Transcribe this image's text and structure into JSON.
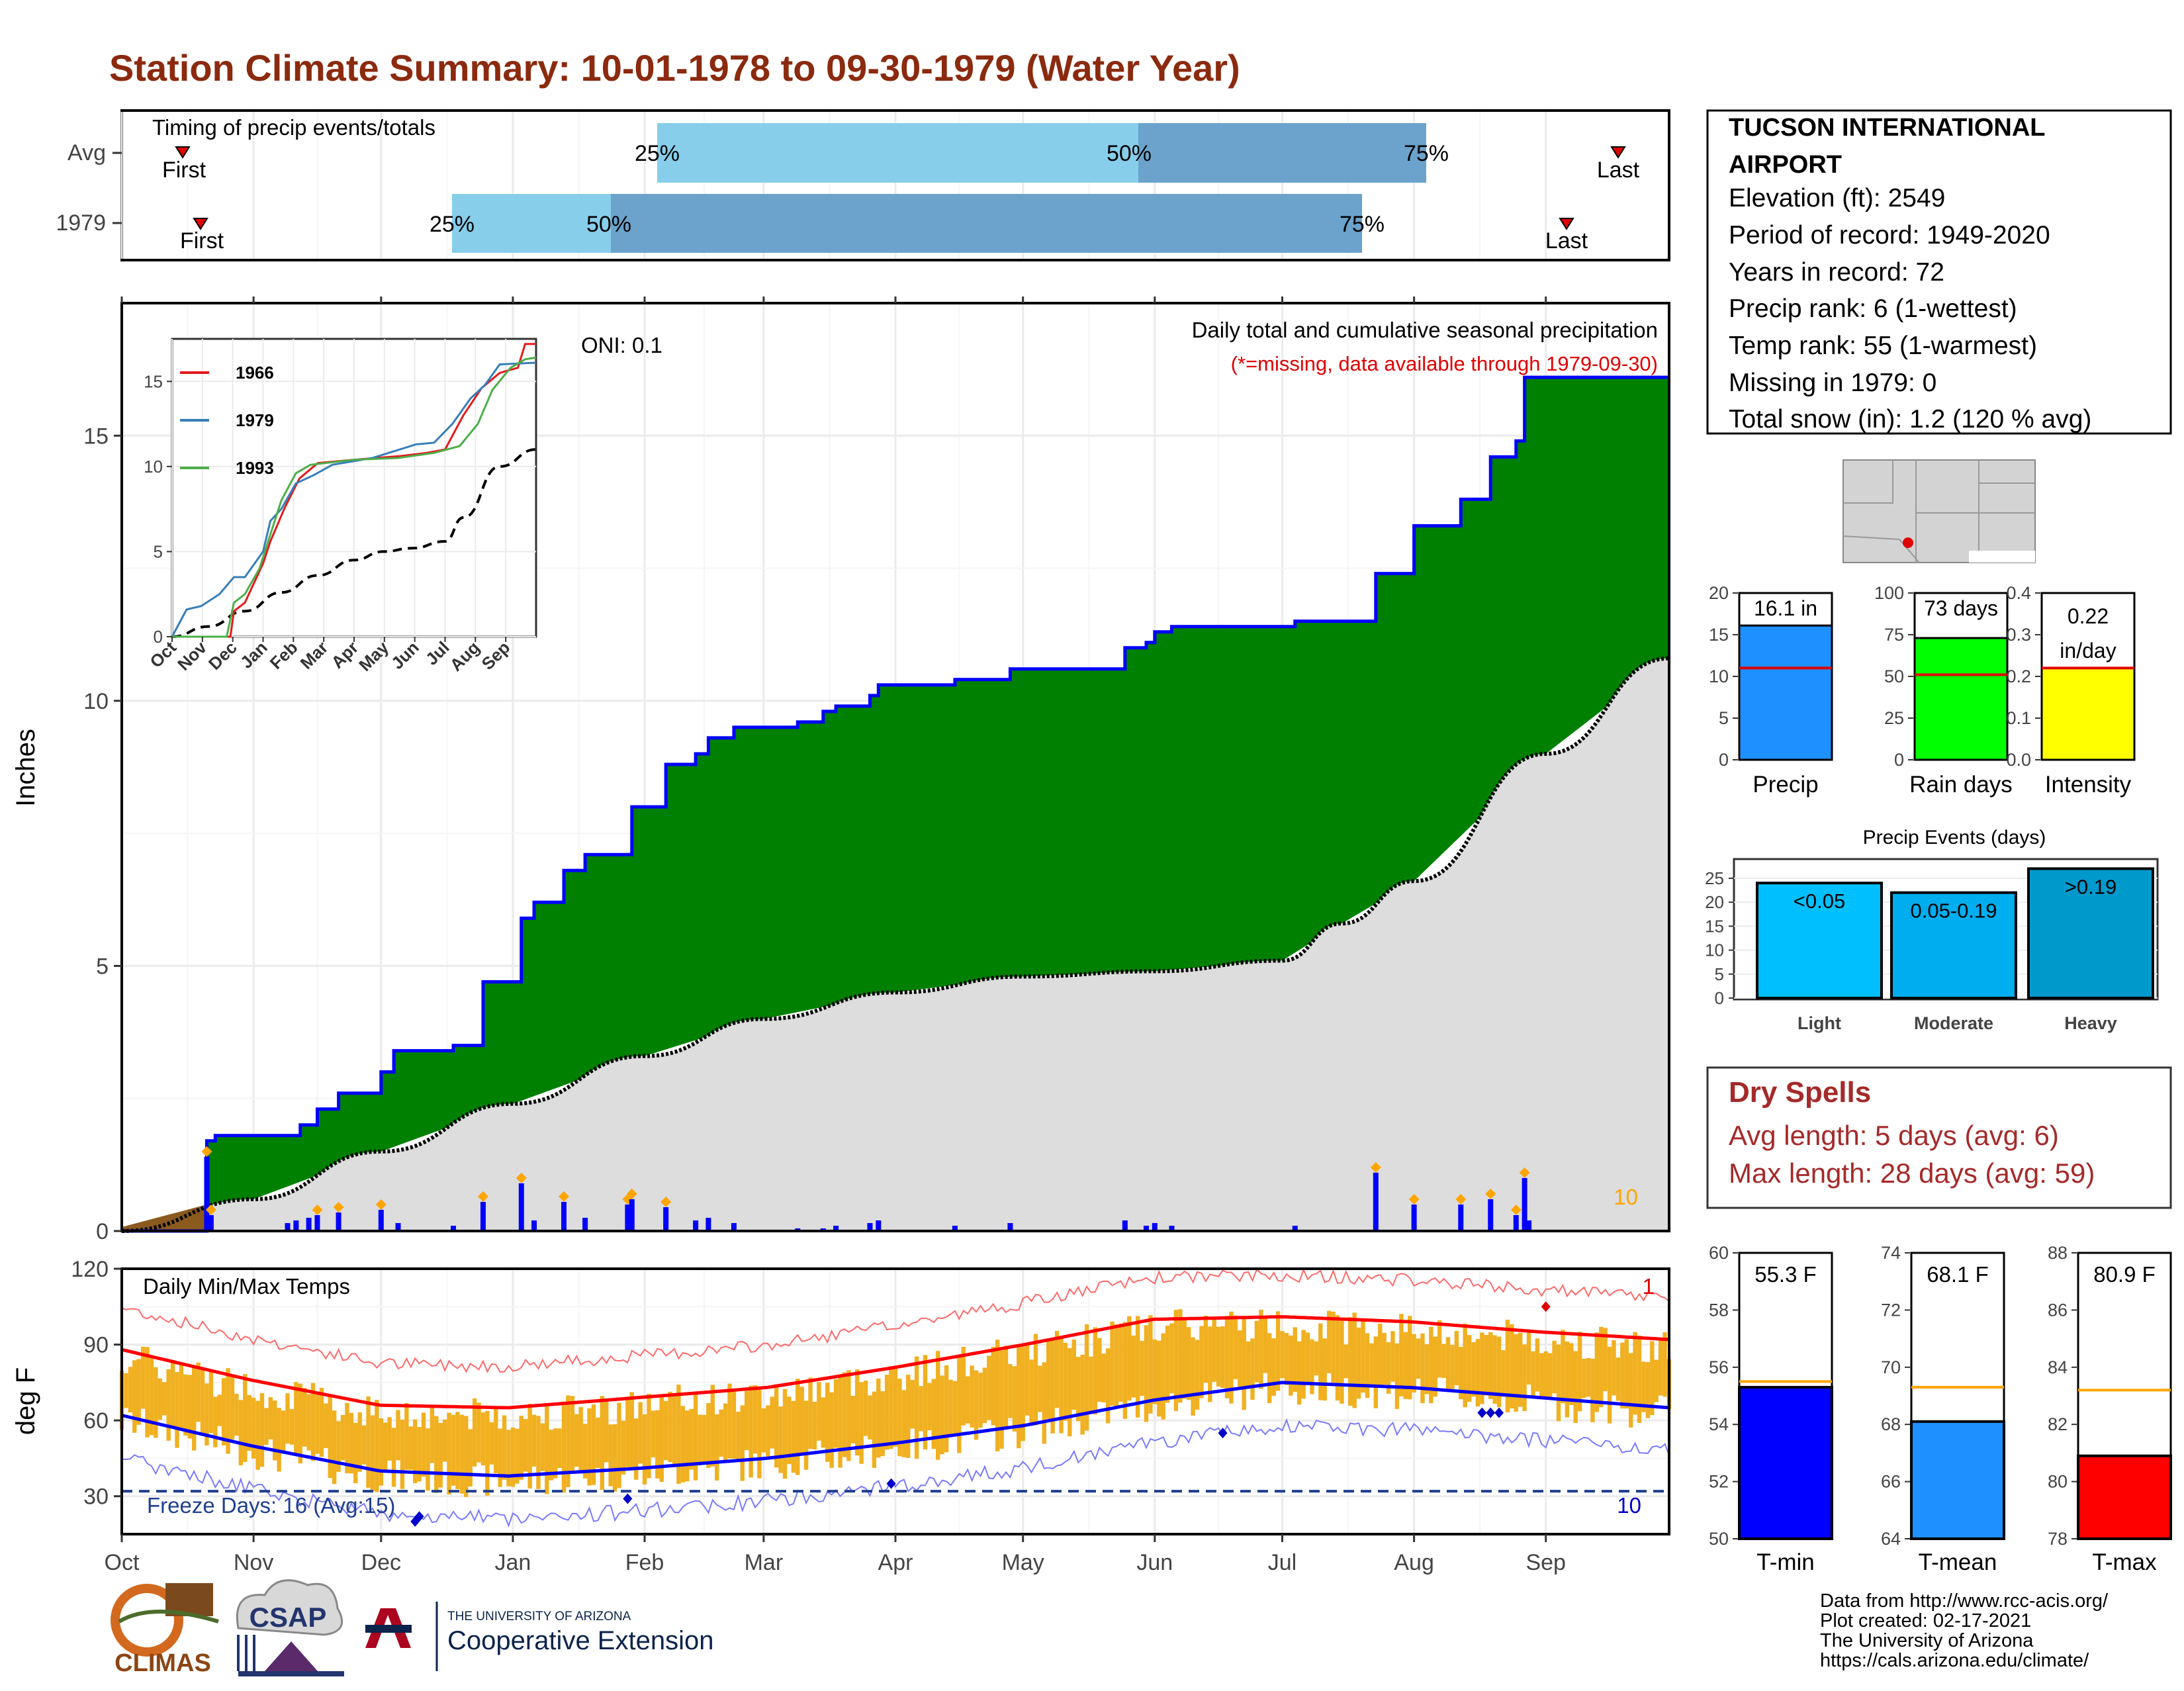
{
  "title": "Station Climate Summary: 10-01-1978 to 09-30-1979 (Water Year)",
  "colors": {
    "title": "#8B2A0E",
    "green": "#008000",
    "blue_line": "#0000FF",
    "light_bar": "#87CEEB",
    "dark_bar": "#6BA3CC",
    "dry": "#A52A2A",
    "orange": "#FFA500"
  },
  "timing": {
    "label": "Timing of precip events/totals",
    "rows": [
      {
        "name": "Avg",
        "first_label": "First",
        "last_label": "Last",
        "p25": "25%",
        "p50": "50%",
        "p75": "75%"
      },
      {
        "name": "1979",
        "first_label": "First",
        "last_label": "Last",
        "p25": "25%",
        "p50": "50%",
        "p75": "75%"
      }
    ]
  },
  "station": {
    "name1": "TUCSON INTERNATIONAL",
    "name2": "AIRPORT",
    "lines": [
      "Elevation (ft): 2549",
      "Period of record: 1949-2020",
      "Years in record: 72",
      "Precip rank: 6 (1-wettest)",
      "Temp rank: 55 (1-warmest)",
      "Missing in 1979: 0",
      "Total snow (in): 1.2 (120 % avg)"
    ]
  },
  "main": {
    "ylabel": "Inches",
    "oni": "ONI: 0.1",
    "desc1": "Daily total and cumulative seasonal precipitation",
    "desc2": "(*=missing, data available through 1979-09-30)",
    "corner": "10"
  },
  "temps": {
    "ylabel": "deg F",
    "title": "Daily Min/Max Temps",
    "freeze": "Freeze Days: 16 (Avg:15)",
    "top_right": "1",
    "bottom_right": "10"
  },
  "months": [
    "Oct",
    "Nov",
    "Dec",
    "Jan",
    "Feb",
    "Mar",
    "Apr",
    "May",
    "Jun",
    "Jul",
    "Aug",
    "Sep"
  ],
  "inset": {
    "series": [
      {
        "name": "1966",
        "color": "#E41A1C"
      },
      {
        "name": "1979",
        "color": "#377EB8"
      },
      {
        "name": "1993",
        "color": "#4DAF4A"
      }
    ]
  },
  "summary_bars": [
    {
      "label": "Precip",
      "value_label": "16.1 in",
      "value": 16.1,
      "avg": 11.0,
      "max": 20,
      "ticks": [
        0,
        5,
        10,
        15,
        20
      ],
      "color": "#1E90FF"
    },
    {
      "label": "Rain days",
      "value_label": "73 days",
      "value": 73,
      "avg": 51,
      "max": 100,
      "ticks": [
        0,
        25,
        50,
        75,
        100
      ],
      "color": "#00FF00"
    },
    {
      "label": "Intensity",
      "value_label": "0.22 in/day",
      "value_label_1": "0.22",
      "value_label_2": "in/day",
      "value": 0.22,
      "avg": 0.22,
      "max": 0.4,
      "ticks": [
        "0.0",
        "0.1",
        "0.2",
        "0.3",
        "0.4"
      ],
      "color": "#FFFF00"
    }
  ],
  "events": {
    "title": "Precip Events (days)",
    "bars": [
      {
        "label": "Light",
        "value_label": "<0.05",
        "value": 24,
        "color": "#00BFFF"
      },
      {
        "label": "Moderate",
        "value_label": "0.05-0.19",
        "value": 22,
        "color": "#00AEEF"
      },
      {
        "label": "Heavy",
        "value_label": ">0.19",
        "value": 27,
        "color": "#0099CC"
      }
    ],
    "ticks": [
      0,
      5,
      10,
      15,
      20,
      25
    ]
  },
  "dry": {
    "title": "Dry Spells",
    "avg": "Avg length: 5 days (avg: 6)",
    "max": "Max length: 28 days (avg: 59)"
  },
  "temp_bars": [
    {
      "label": "T-min",
      "value_label": "55.3 F",
      "value": 55.3,
      "avg": 55.5,
      "min": 50,
      "max": 60,
      "ticks": [
        50,
        52,
        54,
        56,
        58,
        60
      ],
      "color": "#0000FF"
    },
    {
      "label": "T-mean",
      "value_label": "68.1 F",
      "value": 68.1,
      "avg": 69.3,
      "min": 64,
      "max": 74,
      "ticks": [
        64,
        66,
        68,
        70,
        72,
        74
      ],
      "color": "#1E90FF"
    },
    {
      "label": "T-max",
      "value_label": "80.9 F",
      "value": 80.9,
      "avg": 83.2,
      "min": 78,
      "max": 88,
      "ticks": [
        78,
        80,
        82,
        84,
        86,
        88
      ],
      "color": "#FF0000"
    }
  ],
  "footer": {
    "line1": "Data from http://www.rcc-acis.org/",
    "line2": "Plot created: 02-17-2021",
    "line3": "The University of Arizona",
    "line4": "https://cals.arizona.edu/climate/",
    "ua_small": "THE UNIVERSITY OF ARIZONA",
    "ua_big": "Cooperative Extension",
    "climas": "CLIMAS",
    "csap": "CSAP"
  },
  "chart_data": {
    "type": "area",
    "x_range": [
      "1978-10-01",
      "1979-09-30"
    ],
    "ylim": [
      0,
      17.5
    ],
    "yticks": [
      0,
      5,
      10,
      15
    ],
    "cumulative_1979_steps": [
      [
        "1978-10-01",
        0
      ],
      [
        "1978-10-21",
        1.7
      ],
      [
        "1978-10-23",
        1.8
      ],
      [
        "1978-11-12",
        2.0
      ],
      [
        "1978-11-16",
        2.3
      ],
      [
        "1978-11-21",
        2.6
      ],
      [
        "1978-12-01",
        3.0
      ],
      [
        "1978-12-04",
        3.4
      ],
      [
        "1978-12-18",
        3.5
      ],
      [
        "1978-12-25",
        4.7
      ],
      [
        "1979-01-03",
        5.9
      ],
      [
        "1979-01-06",
        6.2
      ],
      [
        "1979-01-13",
        6.8
      ],
      [
        "1979-01-18",
        7.1
      ],
      [
        "1979-01-29",
        8.0
      ],
      [
        "1979-02-06",
        8.8
      ],
      [
        "1979-02-13",
        9.0
      ],
      [
        "1979-02-16",
        9.3
      ],
      [
        "1979-02-22",
        9.5
      ],
      [
        "1979-03-09",
        9.6
      ],
      [
        "1979-03-15",
        9.8
      ],
      [
        "1979-03-18",
        9.9
      ],
      [
        "1979-03-26",
        10.1
      ],
      [
        "1979-03-28",
        10.3
      ],
      [
        "1979-04-15",
        10.4
      ],
      [
        "1979-04-28",
        10.6
      ],
      [
        "1979-05-25",
        11.0
      ],
      [
        "1979-05-30",
        11.1
      ],
      [
        "1979-06-01",
        11.3
      ],
      [
        "1979-06-05",
        11.4
      ],
      [
        "1979-07-04",
        11.5
      ],
      [
        "1979-07-23",
        12.4
      ],
      [
        "1979-08-01",
        13.3
      ],
      [
        "1979-08-12",
        13.8
      ],
      [
        "1979-08-19",
        14.6
      ],
      [
        "1979-08-25",
        14.9
      ],
      [
        "1979-08-27",
        16.1
      ],
      [
        "1979-09-30",
        16.1
      ]
    ],
    "avg_cumulative": [
      [
        "1978-10-01",
        0
      ],
      [
        "1978-11-01",
        0.6
      ],
      [
        "1978-12-01",
        1.5
      ],
      [
        "1979-01-01",
        2.4
      ],
      [
        "1979-02-01",
        3.3
      ],
      [
        "1979-03-01",
        4.0
      ],
      [
        "1979-04-01",
        4.5
      ],
      [
        "1979-05-01",
        4.8
      ],
      [
        "1979-06-01",
        4.9
      ],
      [
        "1979-07-01",
        5.1
      ],
      [
        "1979-07-15",
        5.8
      ],
      [
        "1979-08-01",
        6.6
      ],
      [
        "1979-09-01",
        9.0
      ],
      [
        "1979-09-30",
        10.8
      ]
    ],
    "daily_precip": [
      [
        "1978-10-21",
        1.4
      ],
      [
        "1978-10-22",
        0.3
      ],
      [
        "1978-11-09",
        0.15
      ],
      [
        "1978-11-11",
        0.2
      ],
      [
        "1978-11-14",
        0.25
      ],
      [
        "1978-11-16",
        0.3
      ],
      [
        "1978-11-21",
        0.35
      ],
      [
        "1978-12-01",
        0.4
      ],
      [
        "1978-12-05",
        0.15
      ],
      [
        "1978-12-18",
        0.1
      ],
      [
        "1978-12-25",
        0.55
      ],
      [
        "1979-01-03",
        0.9
      ],
      [
        "1979-01-06",
        0.2
      ],
      [
        "1979-01-13",
        0.55
      ],
      [
        "1979-01-18",
        0.25
      ],
      [
        "1979-01-28",
        0.5
      ],
      [
        "1979-01-29",
        0.6
      ],
      [
        "1979-02-06",
        0.45
      ],
      [
        "1979-02-13",
        0.2
      ],
      [
        "1979-02-16",
        0.25
      ],
      [
        "1979-02-22",
        0.15
      ],
      [
        "1979-03-09",
        0.05
      ],
      [
        "1979-03-15",
        0.05
      ],
      [
        "1979-03-18",
        0.1
      ],
      [
        "1979-03-26",
        0.15
      ],
      [
        "1979-03-28",
        0.2
      ],
      [
        "1979-04-15",
        0.1
      ],
      [
        "1979-04-28",
        0.15
      ],
      [
        "1979-05-25",
        0.2
      ],
      [
        "1979-05-30",
        0.1
      ],
      [
        "1979-06-01",
        0.15
      ],
      [
        "1979-06-05",
        0.1
      ],
      [
        "1979-07-04",
        0.1
      ],
      [
        "1979-07-23",
        1.1
      ],
      [
        "1979-08-01",
        0.5
      ],
      [
        "1979-08-12",
        0.5
      ],
      [
        "1979-08-19",
        0.6
      ],
      [
        "1979-08-25",
        0.3
      ],
      [
        "1979-08-27",
        1.0
      ],
      [
        "1979-08-28",
        0.2
      ]
    ],
    "temp_ylim": [
      15,
      120
    ],
    "temp_yticks": [
      30,
      60,
      90,
      120
    ],
    "freeze_line": 32,
    "avg_tmax_monthly": [
      [
        "Oct",
        88
      ],
      [
        "Nov",
        76
      ],
      [
        "Dec",
        66
      ],
      [
        "Jan",
        65
      ],
      [
        "Feb",
        69
      ],
      [
        "Mar",
        73
      ],
      [
        "Apr",
        81
      ],
      [
        "May",
        90
      ],
      [
        "Jun",
        100
      ],
      [
        "Jul",
        101
      ],
      [
        "Aug",
        99
      ],
      [
        "Sep",
        95
      ],
      [
        "Sep-end",
        92
      ]
    ],
    "avg_tmin_monthly": [
      [
        "Oct",
        62
      ],
      [
        "Nov",
        50
      ],
      [
        "Dec",
        40
      ],
      [
        "Jan",
        38
      ],
      [
        "Feb",
        41
      ],
      [
        "Mar",
        45
      ],
      [
        "Apr",
        51
      ],
      [
        "May",
        58
      ],
      [
        "Jun",
        68
      ],
      [
        "Jul",
        75
      ],
      [
        "Aug",
        73
      ],
      [
        "Sep",
        69
      ],
      [
        "Sep-end",
        65
      ]
    ]
  }
}
